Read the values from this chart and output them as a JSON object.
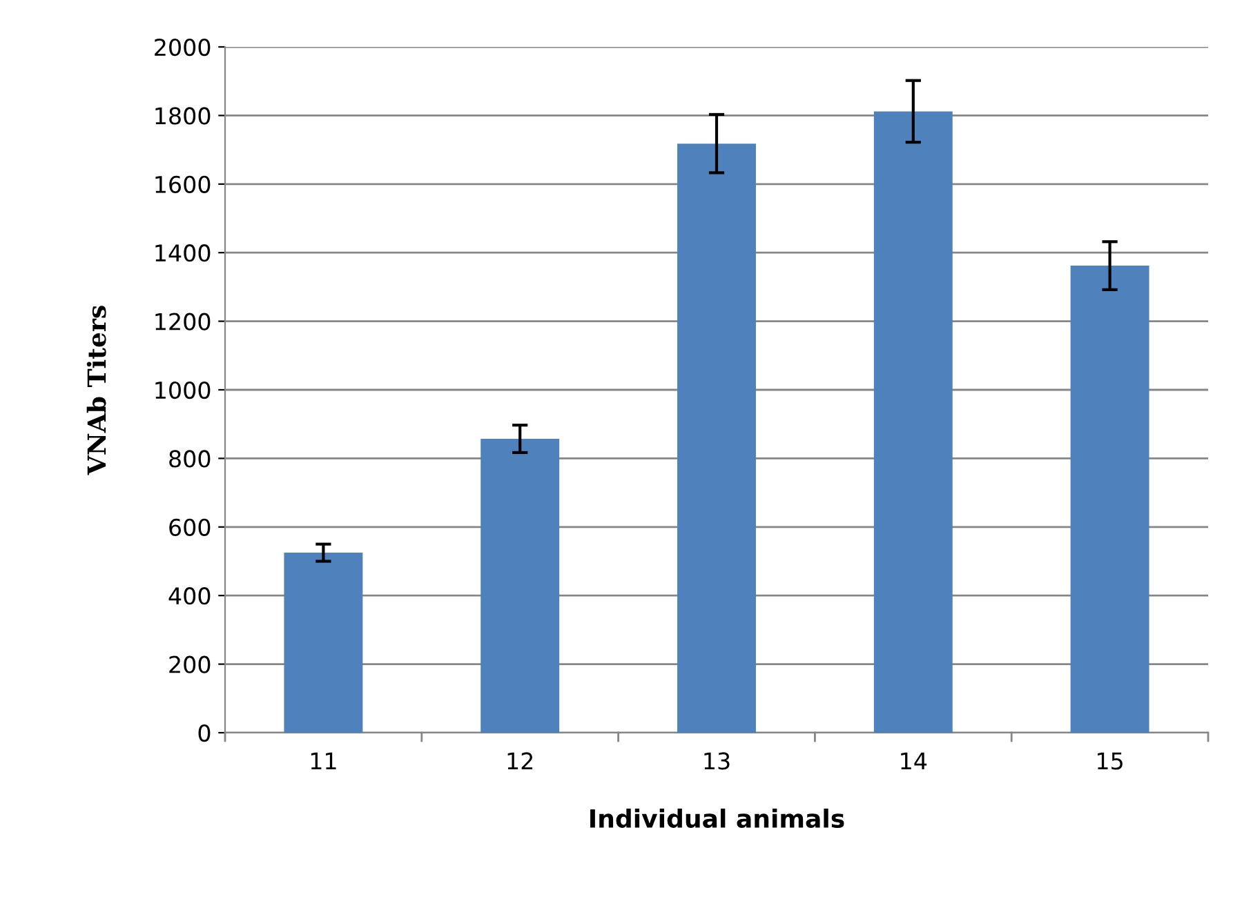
{
  "chart_data": {
    "type": "bar",
    "xlabel": "Individual animals",
    "ylabel": "VNAb Titers",
    "categories": [
      "11",
      "12",
      "13",
      "14",
      "15"
    ],
    "values": [
      525,
      857,
      1718,
      1812,
      1362
    ],
    "errors": [
      25,
      40,
      85,
      90,
      70
    ],
    "color": "#4f81bd",
    "ylim": [
      0,
      2000
    ],
    "yticks": [
      0,
      200,
      400,
      600,
      800,
      1000,
      1200,
      1400,
      1600,
      1800,
      2000
    ],
    "grid": "y",
    "legend": false
  }
}
